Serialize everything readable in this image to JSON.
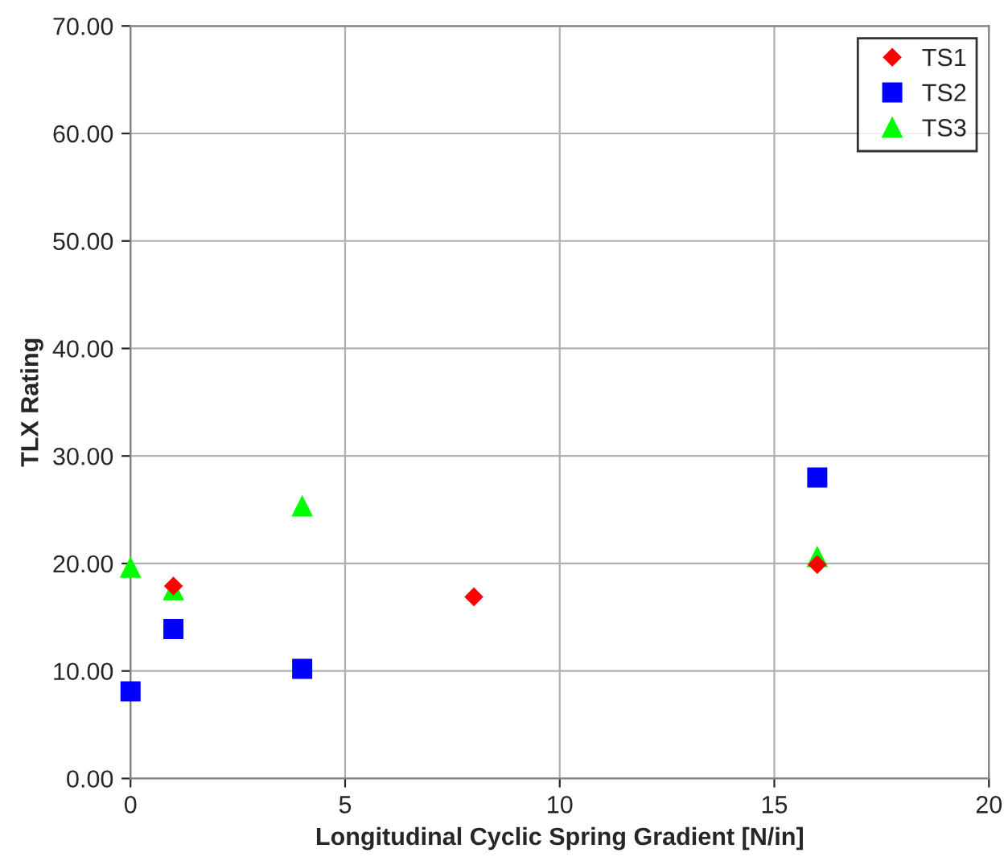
{
  "chart_data": {
    "type": "scatter",
    "xlabel": "Longitudinal Cyclic Spring Gradient [N/in]",
    "ylabel": "TLX Rating",
    "xlim": [
      0,
      20
    ],
    "xticks": [
      0,
      5,
      10,
      15,
      20
    ],
    "ylim": [
      0,
      70
    ],
    "yticks": [
      {
        "value": 0,
        "label": "0.00"
      },
      {
        "value": 10,
        "label": "10.00"
      },
      {
        "value": 20,
        "label": "20.00"
      },
      {
        "value": 30,
        "label": "30.00"
      },
      {
        "value": 40,
        "label": "40.00"
      },
      {
        "value": 50,
        "label": "50.00"
      },
      {
        "value": 60,
        "label": "60.00"
      },
      {
        "value": 70,
        "label": "70.00"
      }
    ],
    "grid": true,
    "legend": "top right",
    "series": [
      {
        "name": "TS1",
        "color": "#ff0000",
        "marker": "diamond",
        "x": [
          1,
          8,
          16
        ],
        "values": [
          17.9,
          16.9,
          19.9
        ]
      },
      {
        "name": "TS2",
        "color": "#0000ff",
        "marker": "square",
        "x": [
          0,
          1,
          4,
          16
        ],
        "values": [
          8.1,
          13.9,
          10.2,
          28.0
        ]
      },
      {
        "name": "TS3",
        "color": "#00ff00",
        "marker": "triangle",
        "x": [
          0,
          1,
          4,
          16
        ],
        "values": [
          19.6,
          17.5,
          25.3,
          20.6
        ]
      }
    ]
  }
}
